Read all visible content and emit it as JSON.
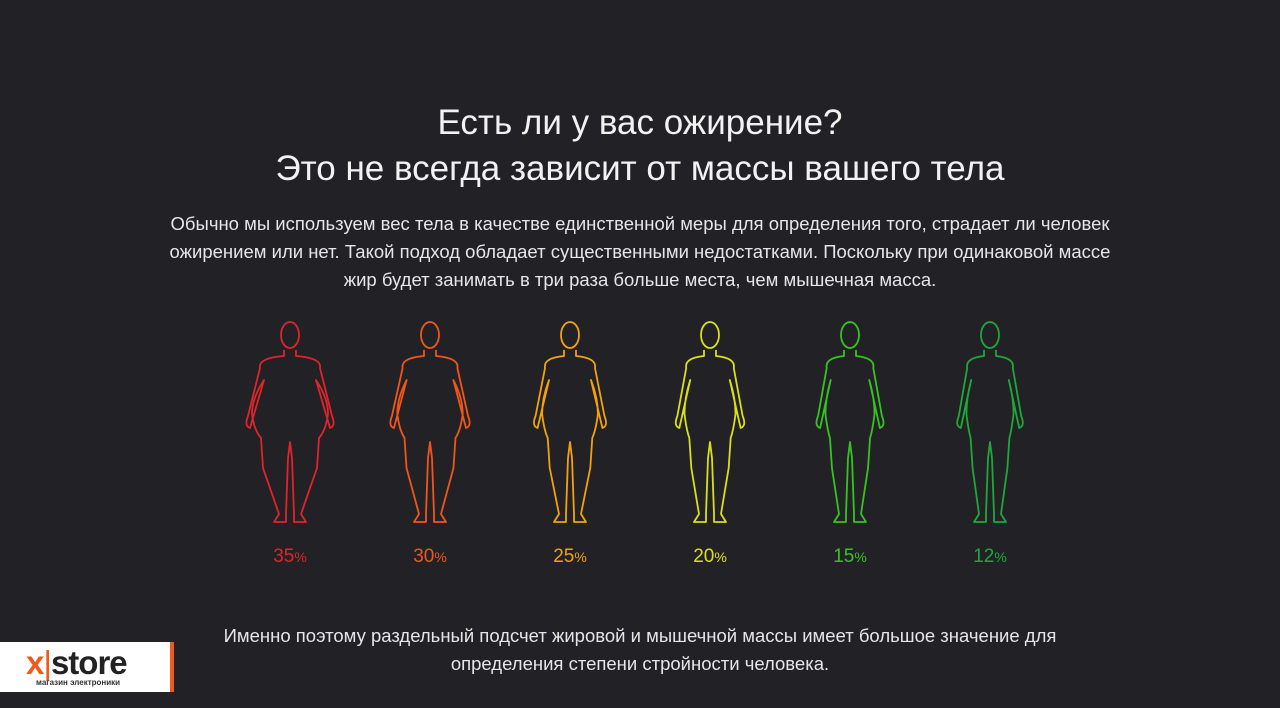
{
  "heading": {
    "line1": "Есть ли у вас ожирение?",
    "line2": "Это не всегда зависит от массы вашего тела"
  },
  "intro": {
    "line1": "Обычно мы используем вес тела в качестве единственной меры для определения того, страдает ли человек",
    "line2": "ожирением или нет. Такой подход обладает существенными недостатками. Поскольку при одинаковой массе",
    "line3": "жир будет занимать в три раза больше места, чем мышечная масса."
  },
  "figures": [
    {
      "value": "35",
      "unit": "%",
      "color": "#e0242b",
      "build": "obese"
    },
    {
      "value": "30",
      "unit": "%",
      "color": "#f0561c",
      "build": "heavy"
    },
    {
      "value": "25",
      "unit": "%",
      "color": "#f2a20f",
      "build": "average"
    },
    {
      "value": "20",
      "unit": "%",
      "color": "#d9e019",
      "build": "fit"
    },
    {
      "value": "15",
      "unit": "%",
      "color": "#35c41f",
      "build": "athletic"
    },
    {
      "value": "12",
      "unit": "%",
      "color": "#1ea83a",
      "build": "lean"
    }
  ],
  "outro": {
    "line1": "Именно поэтому раздельный подсчет жировой и мышечной массы имеет большое значение для",
    "line2": "определения степени стройности человека."
  },
  "logo": {
    "x": "x",
    "bar": "|",
    "store": "store",
    "tagline": "магазин электроники",
    "accent": "#f05a1a"
  }
}
